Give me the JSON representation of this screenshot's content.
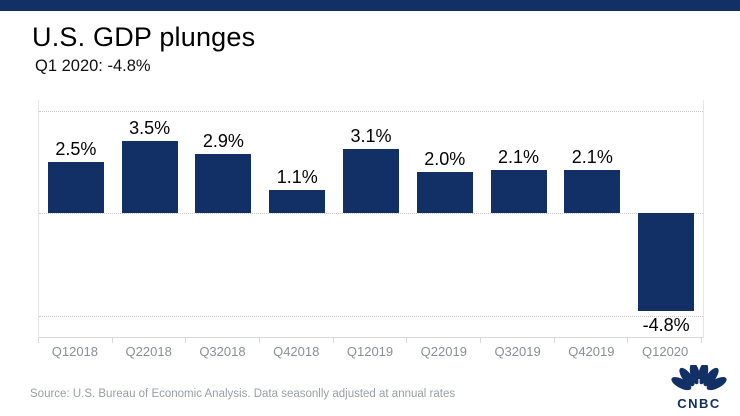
{
  "header": {
    "title": "U.S. GDP plunges",
    "subtitle": "Q1 2020: -4.8%"
  },
  "chart_data": {
    "type": "bar",
    "title": "U.S. GDP plunges",
    "subtitle": "Q1 2020: -4.8%",
    "categories": [
      "Q12018",
      "Q22018",
      "Q32018",
      "Q42018",
      "Q12019",
      "Q22019",
      "Q32019",
      "Q42019",
      "Q12020"
    ],
    "values": [
      2.5,
      3.5,
      2.9,
      1.1,
      3.1,
      2.0,
      2.1,
      2.1,
      -4.8
    ],
    "value_labels": [
      "2.5%",
      "3.5%",
      "2.9%",
      "1.1%",
      "3.1%",
      "2.0%",
      "2.1%",
      "2.1%",
      "-4.8%"
    ],
    "xlabel": "",
    "ylabel": "",
    "ylim": [
      -5,
      5
    ],
    "gridlines_y": [
      5,
      0,
      -5
    ],
    "grid_style": "dotted-horizontal",
    "legend": "none",
    "bar_color": "#123065",
    "value_label_position": "outside-end"
  },
  "footer": {
    "source": "Source: U.S. Bureau of Economic Analysis. Data seasonlly adjusted at annual rates",
    "brand": "CNBC"
  },
  "colors": {
    "accent_navy": "#123065",
    "value_label": "#030303",
    "axis_label_gray": "#8a9096",
    "source_gray": "#989ea3",
    "gridline_gray": "#c9c9c9",
    "background": "#ffffff"
  }
}
